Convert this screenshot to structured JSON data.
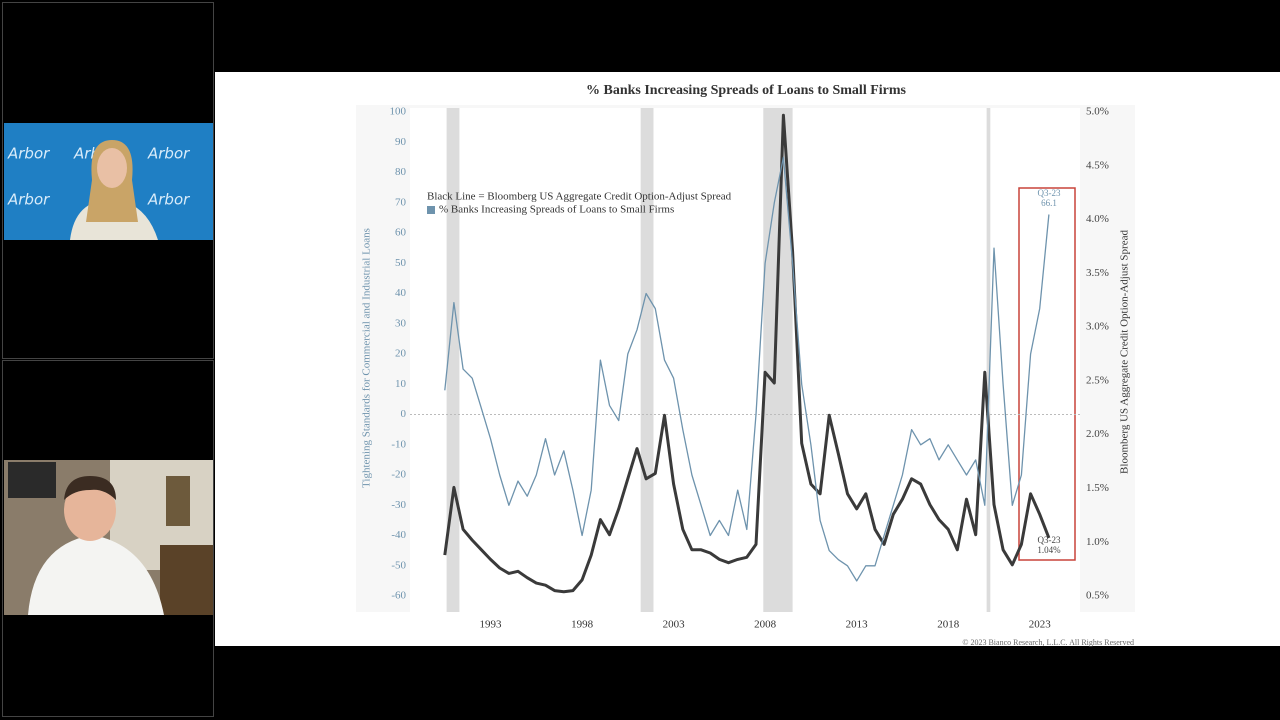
{
  "logo_text": "Arbor",
  "copyright": "© 2023 Bianco Research, L.L.C. All Rights Reserved",
  "chart_data": {
    "type": "line",
    "title": "% Banks Increasing Spreads of Loans to Small Firms",
    "ylabel": "Tightening Standards for Commercial and Industrial Loans",
    "y2label": "Bloomberg US Aggregate Credit Option-Adjust Spread",
    "x": [
      1990.5,
      1991,
      1991.5,
      1992,
      1992.5,
      1993,
      1993.5,
      1994,
      1994.5,
      1995,
      1995.5,
      1996,
      1996.5,
      1997,
      1997.5,
      1998,
      1998.5,
      1999,
      1999.5,
      2000,
      2000.5,
      2001,
      2001.5,
      2002,
      2002.5,
      2003,
      2003.5,
      2004,
      2004.5,
      2005,
      2005.5,
      2006,
      2006.5,
      2007,
      2007.5,
      2008,
      2008.5,
      2009,
      2009.5,
      2010,
      2010.5,
      2011,
      2011.5,
      2012,
      2012.5,
      2013,
      2013.5,
      2014,
      2014.5,
      2015,
      2015.5,
      2016,
      2016.5,
      2017,
      2017.5,
      2018,
      2018.5,
      2019,
      2019.5,
      2020,
      2020.5,
      2021,
      2021.5,
      2022,
      2022.5,
      2023,
      2023.5
    ],
    "series": [
      {
        "name": "Black Line = Bloomberg US Aggregate Credit Option-Adjust Spread",
        "color": "#3a3a3a",
        "axis": "y2",
        "values": [
          0.88,
          1.51,
          1.12,
          1.02,
          0.93,
          0.84,
          0.76,
          0.71,
          0.73,
          0.67,
          0.62,
          0.6,
          0.55,
          0.54,
          0.55,
          0.65,
          0.88,
          1.21,
          1.07,
          1.31,
          1.59,
          1.87,
          1.59,
          1.64,
          2.18,
          1.54,
          1.12,
          0.93,
          0.93,
          0.9,
          0.84,
          0.81,
          0.84,
          0.86,
          0.98,
          2.58,
          2.48,
          4.97,
          3.7,
          1.92,
          1.54,
          1.45,
          2.18,
          1.82,
          1.45,
          1.31,
          1.45,
          1.12,
          0.98,
          1.26,
          1.4,
          1.59,
          1.54,
          1.35,
          1.21,
          1.12,
          0.93,
          1.4,
          1.07,
          2.58,
          1.35,
          0.93,
          0.79,
          0.98,
          1.45,
          1.26,
          1.04
        ]
      },
      {
        "name": "% Banks Increasing Spreads of Loans to Small Firms",
        "color": "#6e93ad",
        "values": [
          8,
          37,
          15,
          12,
          2,
          -8,
          -20,
          -30,
          -22,
          -27,
          -20,
          -8,
          -20,
          -12,
          -25,
          -40,
          -25,
          18,
          3,
          -2,
          20,
          28,
          40,
          35,
          18,
          12,
          -5,
          -20,
          -30,
          -40,
          -35,
          -40,
          -25,
          -38,
          0,
          50,
          70,
          85,
          50,
          10,
          -10,
          -35,
          -45,
          -48,
          -50,
          -55,
          -50,
          -50,
          -40,
          -30,
          -20,
          -5,
          -10,
          -8,
          -15,
          -10,
          -15,
          -20,
          -15,
          -30,
          55,
          10,
          -30,
          -20,
          20,
          35,
          66.1
        ]
      }
    ],
    "xlim": [
      1988.6,
      2025.2
    ],
    "xticks": [
      1993,
      1998,
      2003,
      2008,
      2013,
      2018,
      2023
    ],
    "ylim": [
      -60,
      100
    ],
    "yticks": [
      -60,
      -50,
      -40,
      -30,
      -20,
      -10,
      0,
      10,
      20,
      30,
      40,
      50,
      60,
      70,
      80,
      90,
      100
    ],
    "y2lim": [
      0.5,
      5.0
    ],
    "y2ticks": [
      {
        "value": 0.5,
        "label": "0.5%"
      },
      {
        "value": 1.0,
        "label": "1.0%"
      },
      {
        "value": 1.5,
        "label": "1.5%"
      },
      {
        "value": 2.0,
        "label": "2.0%"
      },
      {
        "value": 2.5,
        "label": "2.5%"
      },
      {
        "value": 3.0,
        "label": "3.0%"
      },
      {
        "value": 3.5,
        "label": "3.5%"
      },
      {
        "value": 4.0,
        "label": "4.0%"
      },
      {
        "value": 4.5,
        "label": "4.5%"
      },
      {
        "value": 5.0,
        "label": "5.0%"
      }
    ],
    "shaded_periods": [
      [
        1990.6,
        1991.3
      ],
      [
        2001.2,
        2001.9
      ],
      [
        2007.9,
        2009.5
      ],
      [
        2020.1,
        2020.3
      ]
    ],
    "zero_line": true,
    "annotations": [
      "Q3-23",
      "66.1",
      "Q3-23",
      "1.04%"
    ]
  }
}
